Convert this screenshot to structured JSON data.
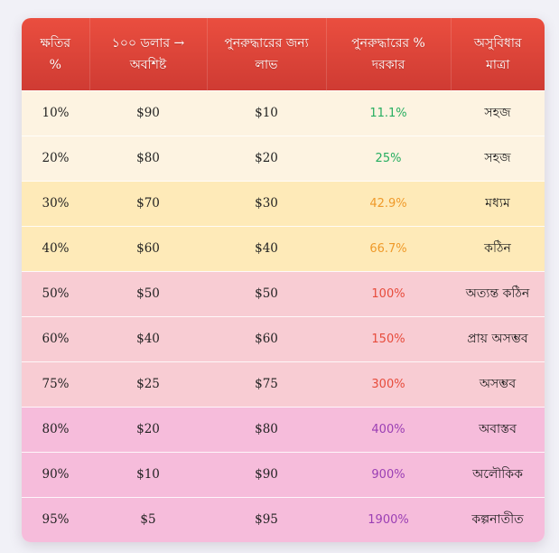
{
  "colors": {
    "header_start": "#ea4e3f",
    "header_end": "#cf3b33",
    "tier_easy": "#fdf3e1",
    "tier_medium": "#feeab8",
    "tier_hard": "#f8ccd3",
    "tier_extreme": "#f6bcdb",
    "pct_green": "#27ae60",
    "pct_orange": "#ef9a2a",
    "pct_red": "#e74c3c",
    "pct_purple": "#9b3fb4"
  },
  "table": {
    "headers": {
      "loss_line1": "ক্ষতির",
      "loss_line2": "%",
      "remaining_line1": "১০০ ডলার →",
      "remaining_line2": "অবশিষ্ট",
      "gain_line1": "পুনরুদ্ধারের জন্য",
      "gain_line2": "লাভ",
      "pct_line1": "পুনরুদ্ধারের %",
      "pct_line2": "দরকার",
      "difficulty_line1": "অসুবিধার",
      "difficulty_line2": "মাত্রা"
    },
    "rows": [
      {
        "loss": "10%",
        "remaining": "$90",
        "gain": "$10",
        "pct": "11.1%",
        "difficulty": "সহজ"
      },
      {
        "loss": "20%",
        "remaining": "$80",
        "gain": "$20",
        "pct": "25%",
        "difficulty": "সহজ"
      },
      {
        "loss": "30%",
        "remaining": "$70",
        "gain": "$30",
        "pct": "42.9%",
        "difficulty": "মধ্যম"
      },
      {
        "loss": "40%",
        "remaining": "$60",
        "gain": "$40",
        "pct": "66.7%",
        "difficulty": "কঠিন"
      },
      {
        "loss": "50%",
        "remaining": "$50",
        "gain": "$50",
        "pct": "100%",
        "difficulty": "অত্যন্ত কঠিন"
      },
      {
        "loss": "60%",
        "remaining": "$40",
        "gain": "$60",
        "pct": "150%",
        "difficulty": "প্রায় অসম্ভব"
      },
      {
        "loss": "75%",
        "remaining": "$25",
        "gain": "$75",
        "pct": "300%",
        "difficulty": "অসম্ভব"
      },
      {
        "loss": "80%",
        "remaining": "$20",
        "gain": "$80",
        "pct": "400%",
        "difficulty": "অবাস্তব"
      },
      {
        "loss": "90%",
        "remaining": "$10",
        "gain": "$90",
        "pct": "900%",
        "difficulty": "অলৌকিক"
      },
      {
        "loss": "95%",
        "remaining": "$5",
        "gain": "$95",
        "pct": "1900%",
        "difficulty": "কল্পনাতীত"
      }
    ]
  }
}
